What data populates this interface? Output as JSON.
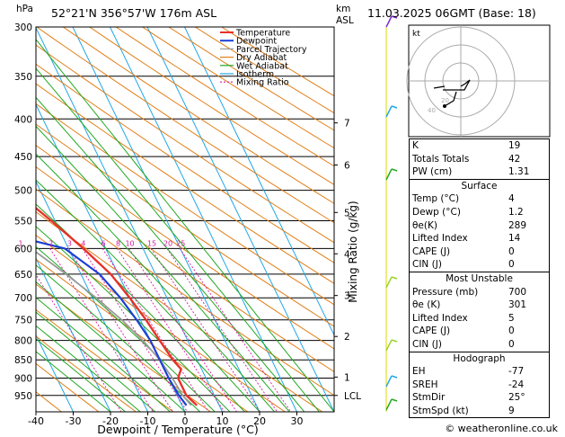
{
  "header": {
    "location": "52°21'N  356°57'W  176m  ASL",
    "datetime": "11.03.2025  06GMT  (Base: 18)",
    "hpa_label": "hPa",
    "km_label": "km",
    "asl_label": "ASL"
  },
  "legend": [
    "Temperature",
    "Dewpoint",
    "Parcel Trajectory",
    "Dry Adiabat",
    "Wet Adiabat",
    "Isotherm",
    "Mixing Ratio"
  ],
  "colors": {
    "temperature": "#e8312a",
    "dewpoint": "#1c3fd6",
    "parcel": "#9a9a9a",
    "dry_adiabat": "#e07f18",
    "wet_adiabat": "#22a822",
    "isotherm": "#22a7e6",
    "mixing_ratio": "#d41b9c"
  },
  "chart_data": {
    "type": "line",
    "title": "",
    "xlabel": "Dewpoint / Temperature (°C)",
    "ylabel": "hPa",
    "y2label": "Mixing Ratio (g/kg)",
    "xlim": [
      -40,
      40
    ],
    "ylim": [
      300,
      1000
    ],
    "pressure_ticks": [
      300,
      350,
      400,
      450,
      500,
      550,
      600,
      650,
      700,
      750,
      800,
      850,
      900,
      950
    ],
    "temperature_ticks": [
      -40,
      -30,
      -20,
      -10,
      0,
      10,
      20,
      30
    ],
    "km_ticks": [
      {
        "label": "7",
        "p": 405
      },
      {
        "label": "6",
        "p": 462
      },
      {
        "label": "5",
        "p": 536
      },
      {
        "label": "4",
        "p": 610
      },
      {
        "label": "3",
        "p": 695
      },
      {
        "label": "2",
        "p": 790
      },
      {
        "label": "1",
        "p": 897
      },
      {
        "label": "LCL",
        "p": 950
      }
    ],
    "mixing_ratio_labels": [
      "1",
      "2",
      "3",
      "4",
      "6",
      "8",
      "10",
      "15",
      "20",
      "25"
    ],
    "series": [
      {
        "name": "Temperature",
        "points": [
          [
            300,
            -48
          ],
          [
            350,
            -38.5
          ],
          [
            400,
            -31
          ],
          [
            450,
            -24
          ],
          [
            500,
            -17
          ],
          [
            550,
            -11
          ],
          [
            600,
            -6
          ],
          [
            650,
            -2
          ],
          [
            700,
            0
          ],
          [
            750,
            1.5
          ],
          [
            800,
            2.5
          ],
          [
            850,
            3.5
          ],
          [
            875,
            4.5
          ],
          [
            900,
            2.5
          ],
          [
            950,
            2.5
          ],
          [
            980,
            4
          ]
        ]
      },
      {
        "name": "Dewpoint",
        "points": [
          [
            300,
            -58
          ],
          [
            350,
            -57
          ],
          [
            400,
            -61
          ],
          [
            450,
            -58
          ],
          [
            500,
            -46
          ],
          [
            550,
            -33
          ],
          [
            575,
            -24
          ],
          [
            600,
            -11
          ],
          [
            650,
            -5
          ],
          [
            700,
            -2.5
          ],
          [
            750,
            -1
          ],
          [
            800,
            0
          ],
          [
            850,
            0
          ],
          [
            900,
            0
          ],
          [
            950,
            0.5
          ],
          [
            980,
            1.2
          ]
        ]
      },
      {
        "name": "Parcel Trajectory",
        "points": [
          [
            300,
            -62
          ],
          [
            350,
            -53
          ],
          [
            400,
            -46
          ],
          [
            450,
            -39
          ],
          [
            500,
            -32
          ],
          [
            550,
            -26
          ],
          [
            600,
            -20
          ],
          [
            650,
            -14
          ],
          [
            700,
            -9
          ],
          [
            750,
            -5
          ],
          [
            800,
            -2
          ],
          [
            850,
            0
          ],
          [
            900,
            1
          ],
          [
            950,
            1.5
          ],
          [
            980,
            2.5
          ]
        ]
      }
    ]
  },
  "indices": {
    "top": [
      {
        "k": "K",
        "v": "19"
      },
      {
        "k": "Totals Totals",
        "v": "42"
      },
      {
        "k": "PW (cm)",
        "v": "1.31"
      }
    ],
    "surface_title": "Surface",
    "surface": [
      {
        "k": "Temp (°C)",
        "v": "4"
      },
      {
        "k": "Dewp (°C)",
        "v": "1.2"
      },
      {
        "k": "θe(K)",
        "v": "289"
      },
      {
        "k": "Lifted Index",
        "v": "14"
      },
      {
        "k": "CAPE (J)",
        "v": "0"
      },
      {
        "k": "CIN (J)",
        "v": "0"
      }
    ],
    "mu_title": "Most Unstable",
    "mu": [
      {
        "k": "Pressure (mb)",
        "v": "700"
      },
      {
        "k": "θe (K)",
        "v": "301"
      },
      {
        "k": "Lifted Index",
        "v": "5"
      },
      {
        "k": "CAPE (J)",
        "v": "0"
      },
      {
        "k": "CIN (J)",
        "v": "0"
      }
    ],
    "hodo_title": "Hodograph",
    "hodo": [
      {
        "k": "EH",
        "v": "-77"
      },
      {
        "k": "SREH",
        "v": "-24"
      },
      {
        "k": "StmDir",
        "v": "25°"
      },
      {
        "k": "StmSpd (kt)",
        "v": "9"
      }
    ]
  },
  "hodograph": {
    "label": "kt",
    "ring_labels": [
      "20",
      "40"
    ]
  },
  "footer": "© weatheronline.co.uk"
}
